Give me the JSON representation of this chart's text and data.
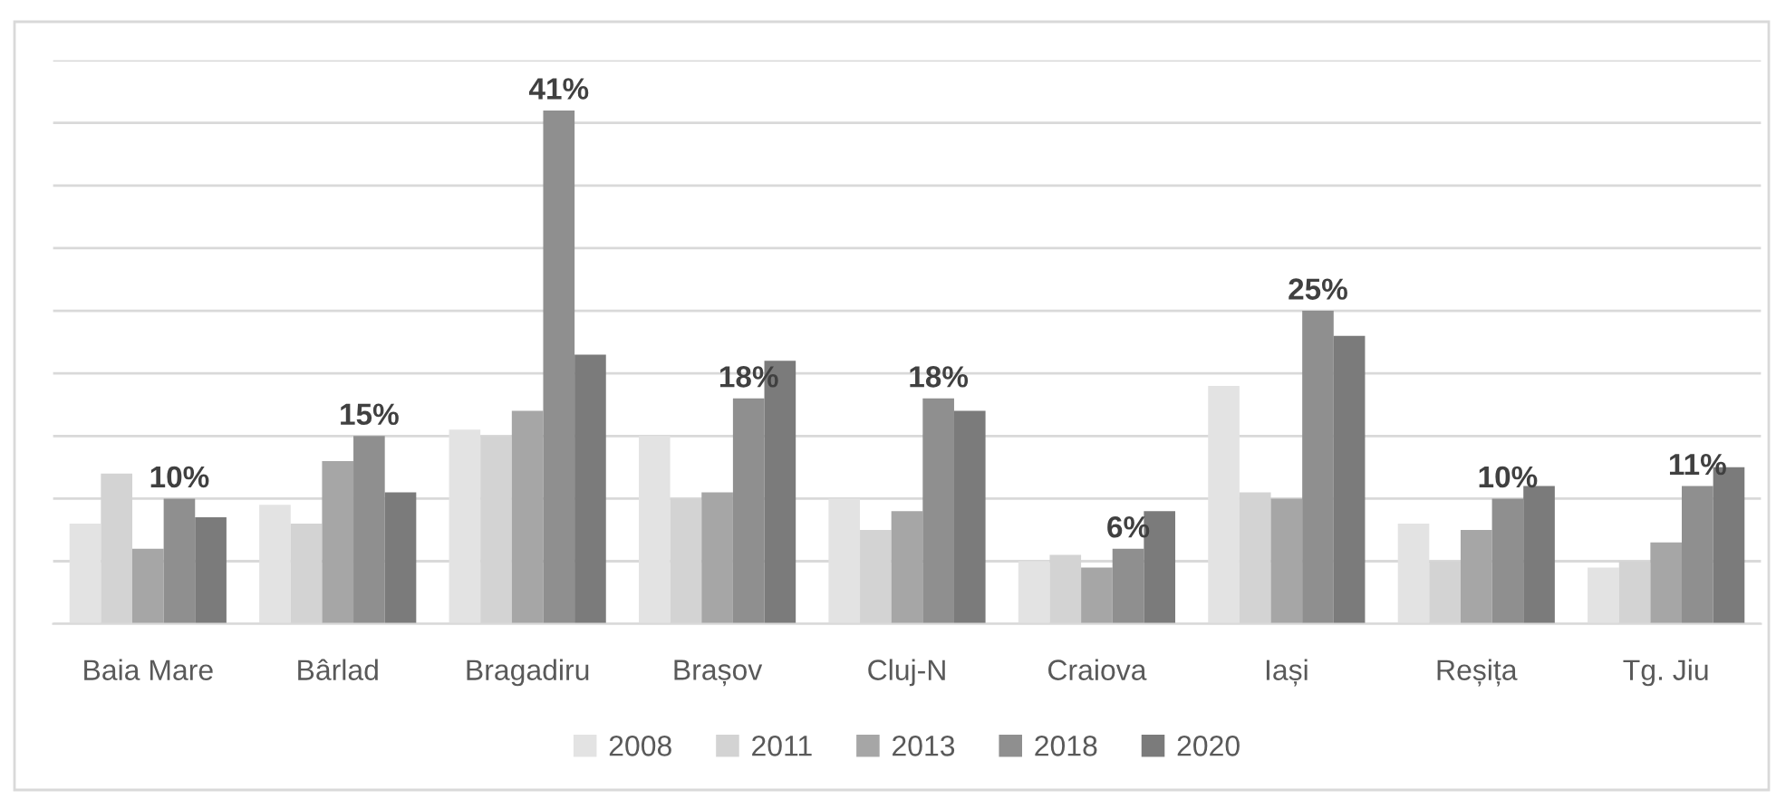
{
  "chart_data": {
    "type": "bar",
    "categories": [
      "Baia Mare",
      "Bârlad",
      "Bragadiru",
      "Brașov",
      "Cluj-N",
      "Craiova",
      "Iași",
      "Reșița",
      "Tg. Jiu"
    ],
    "series": [
      {
        "name": "2008",
        "color": "#e3e3e3",
        "values": [
          8,
          9.5,
          15.5,
          15,
          10,
          5,
          19,
          8,
          4.5
        ]
      },
      {
        "name": "2011",
        "color": "#d3d3d3",
        "values": [
          12,
          8,
          15,
          10,
          7.5,
          5.5,
          10.5,
          5,
          5
        ]
      },
      {
        "name": "2013",
        "color": "#a6a6a6",
        "values": [
          6,
          13,
          17,
          10.5,
          9,
          4.5,
          10,
          7.5,
          6.5
        ]
      },
      {
        "name": "2018",
        "color": "#8f8f8f",
        "values": [
          10,
          15,
          41,
          18,
          18,
          6,
          25,
          10,
          11
        ],
        "value_labels": [
          "10%",
          "15%",
          "41%",
          "18%",
          "18%",
          "6%",
          "25%",
          "10%",
          "11%"
        ]
      },
      {
        "name": "2020",
        "color": "#7b7b7b",
        "values": [
          8.5,
          10.5,
          21.5,
          21,
          17,
          9,
          23,
          11,
          12.5
        ]
      }
    ],
    "ylim": [
      0,
      45
    ],
    "yticks": [
      {
        "value": 0,
        "label": null
      },
      {
        "value": 5,
        "label": null
      },
      {
        "value": 10,
        "label": null
      },
      {
        "value": 15,
        "label": null
      },
      {
        "value": 20,
        "label": null
      },
      {
        "value": 25,
        "label": null
      },
      {
        "value": 30,
        "label": null
      },
      {
        "value": 35,
        "label": null
      },
      {
        "value": 40,
        "label": null
      },
      {
        "value": 45,
        "label": null
      }
    ],
    "tick_labels": "x",
    "grid": "y",
    "legend": "bottom"
  }
}
